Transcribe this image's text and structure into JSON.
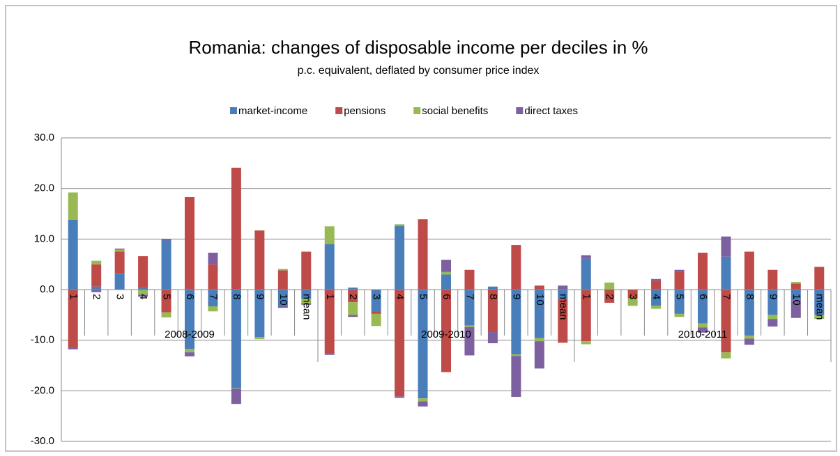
{
  "chart_data": {
    "type": "stacked-bar",
    "title": "Romania: changes of disposable income per deciles in %",
    "subtitle": "p.c. equivalent, deflated by consumer price index",
    "groups": [
      "2008-2009",
      "2009-2010",
      "2010-2011"
    ],
    "categories": [
      "1",
      "2",
      "3",
      "4",
      "5",
      "6",
      "7",
      "8",
      "9",
      "10",
      "mean",
      "1",
      "2",
      "3",
      "4",
      "5",
      "6",
      "7",
      "8",
      "9",
      "10",
      "mean",
      "1",
      "2",
      "3",
      "4",
      "5",
      "6",
      "7",
      "8",
      "9",
      "10",
      "mean"
    ],
    "series": [
      {
        "name": "market-income",
        "color": "#4a7ebb",
        "values": [
          13.8,
          0.6,
          3.2,
          0.4,
          9.7,
          -11.7,
          -3.3,
          -19.5,
          -9.4,
          -3.3,
          -1.8,
          9.0,
          0.4,
          -4.4,
          12.6,
          -21.5,
          3.0,
          -7.1,
          0.6,
          -12.8,
          -9.6,
          -1.9,
          6.1,
          0,
          0,
          -3.2,
          -4.8,
          -6.7,
          6.5,
          -9.1,
          -5.0,
          -2.1,
          -5.0
        ]
      },
      {
        "name": "pensions",
        "color": "#be4b48",
        "values": [
          -11.5,
          4.4,
          4.3,
          6.2,
          -4.5,
          18.3,
          5.0,
          24.1,
          11.7,
          3.8,
          7.5,
          -12.6,
          -2.5,
          -0.4,
          -21.1,
          13.9,
          -16.3,
          3.9,
          -8.4,
          8.8,
          0.8,
          -8.6,
          -10.2,
          -2.6,
          -1.7,
          1.8,
          3.5,
          7.3,
          -12.4,
          7.5,
          3.9,
          1.2,
          4.5
        ]
      },
      {
        "name": "social benefits",
        "color": "#98b954",
        "values": [
          5.4,
          0.7,
          0.4,
          -1.0,
          -1.0,
          -0.7,
          -1.0,
          -0.1,
          -0.4,
          0.3,
          -0.9,
          3.5,
          -2.5,
          -2.4,
          0.3,
          -0.6,
          0.5,
          -0.3,
          0,
          -0.3,
          -0.6,
          0,
          -0.6,
          1.4,
          -1.5,
          -0.6,
          -0.6,
          -0.8,
          -1.2,
          -0.6,
          -0.8,
          0.3,
          -0.8
        ]
      },
      {
        "name": "direct taxes",
        "color": "#7d60a0",
        "values": [
          -0.3,
          -0.5,
          0.2,
          -0.4,
          0.3,
          -0.8,
          2.3,
          -3.0,
          0,
          -0.3,
          -0.3,
          -0.3,
          -0.4,
          0,
          -0.3,
          -1.0,
          2.4,
          -5.6,
          -2.2,
          -8.1,
          -5.4,
          0.8,
          0.7,
          0,
          0,
          0.3,
          0.4,
          -1.0,
          4.0,
          -1.2,
          -1.5,
          -3.5,
          0
        ]
      }
    ],
    "ylim": [
      -30,
      30
    ],
    "yticks": [
      {
        "value": -30,
        "label": "-30.0"
      },
      {
        "value": -20,
        "label": "-20.0"
      },
      {
        "value": -10,
        "label": "-10.0"
      },
      {
        "value": 0,
        "label": "0.0"
      },
      {
        "value": 10,
        "label": "10.0"
      },
      {
        "value": 20,
        "label": "20.0"
      },
      {
        "value": 30,
        "label": "30.0"
      }
    ],
    "grid": true,
    "legend": "top"
  }
}
